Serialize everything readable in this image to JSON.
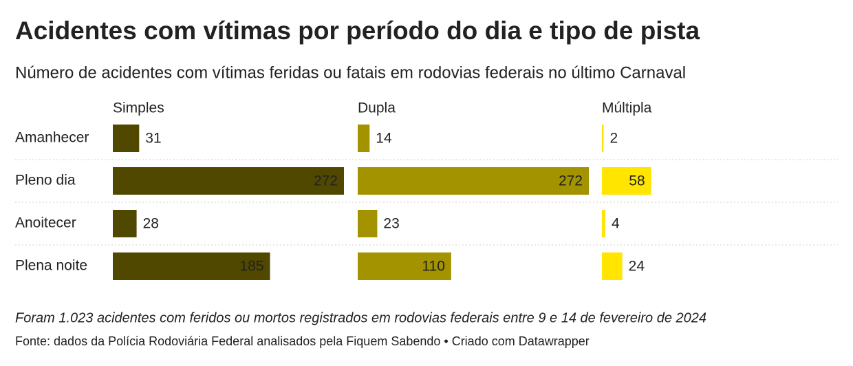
{
  "chart_data": {
    "type": "bar",
    "title": "Acidentes com vítimas por período do dia e tipo de pista",
    "subtitle": "Número de acidentes com vítimas feridas ou fatais em rodovias federais no último Carnaval",
    "categories": [
      "Amanhecer",
      "Pleno dia",
      "Anoitecer",
      "Plena noite"
    ],
    "series": [
      {
        "name": "Simples",
        "color": "#514800",
        "values": [
          31,
          272,
          28,
          185
        ]
      },
      {
        "name": "Dupla",
        "color": "#a39300",
        "values": [
          14,
          272,
          23,
          110
        ]
      },
      {
        "name": "Múltipla",
        "color": "#ffe500",
        "values": [
          2,
          58,
          4,
          24
        ]
      }
    ],
    "note": "Foram 1.023 acidentes com feridos ou mortos registrados em rodovias federais entre 9 e 14 de fevereiro de 2024",
    "source": "Fonte: dados da Polícia Rodoviária Federal analisados pela Fiquem Sabendo • Criado com Datawrapper"
  }
}
